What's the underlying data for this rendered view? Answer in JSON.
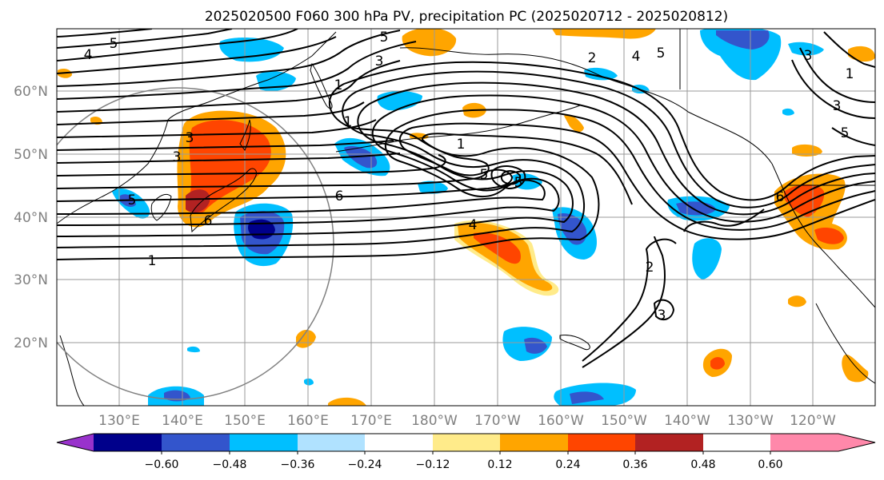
{
  "title": "2025020500 F060 300 hPa PV, precipitation PC (2025020712 - 2025020812)",
  "map": {
    "lat_labels": [
      "60°N",
      "50°N",
      "40°N",
      "30°N",
      "20°N"
    ],
    "lon_labels": [
      "130°E",
      "140°E",
      "150°E",
      "160°E",
      "170°E",
      "180°W",
      "170°W",
      "160°W",
      "150°W",
      "140°W",
      "130°W",
      "120°W"
    ],
    "pv_contour_labels": [
      "5",
      "4",
      "5",
      "3",
      "2",
      "4",
      "5",
      "1",
      "3",
      "1",
      "1",
      "3",
      "3",
      "5",
      "5",
      "6",
      "6",
      "6",
      "4",
      "1",
      "2",
      "3",
      "5",
      "1",
      "3",
      "5"
    ]
  },
  "colorbar": {
    "ticks": [
      "−0.60",
      "−0.48",
      "−0.36",
      "−0.24",
      "−0.12",
      "0.12",
      "0.24",
      "0.36",
      "0.48",
      "0.60"
    ],
    "colors": [
      "#9932cc",
      "#00008b",
      "#3355cc",
      "#00bfff",
      "#b0e2ff",
      "#ffffff",
      "#ffeb8a",
      "#ffa500",
      "#ff4500",
      "#b22222",
      "#ff88aa"
    ]
  }
}
